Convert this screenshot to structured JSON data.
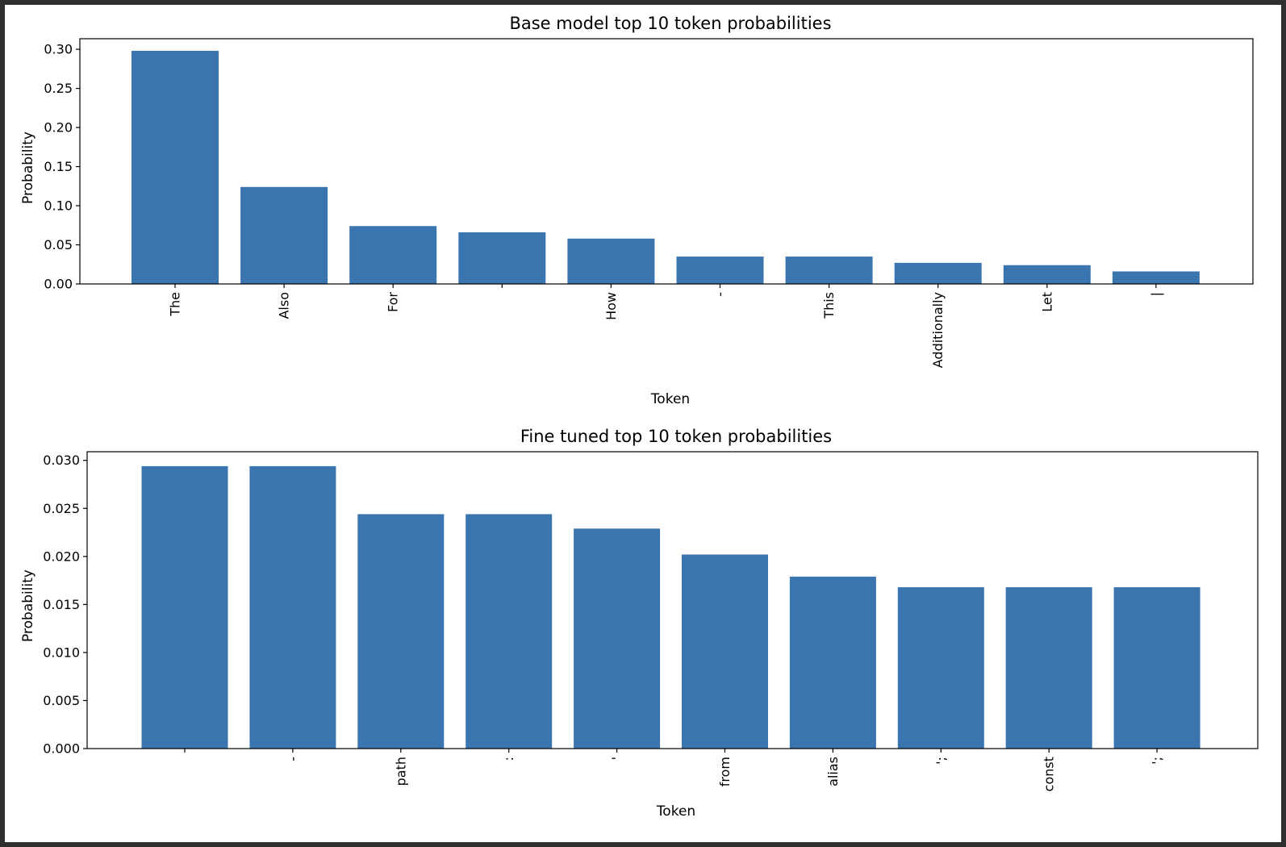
{
  "chart_data": [
    {
      "type": "bar",
      "title": "Base model top 10 token probabilities",
      "xlabel": "Token",
      "ylabel": "Probability",
      "categories": [
        "The",
        "Also",
        "For",
        "",
        "How",
        "-",
        "This",
        "Additionally",
        "Let",
        "|"
      ],
      "values": [
        0.298,
        0.124,
        0.074,
        0.066,
        0.058,
        0.035,
        0.035,
        0.027,
        0.024,
        0.016
      ],
      "ylim": [
        0,
        0.3135
      ],
      "yticks": [
        "0.00",
        "0.05",
        "0.10",
        "0.15",
        "0.20",
        "0.25",
        "0.30"
      ],
      "ytick_values": [
        0,
        0.05,
        0.1,
        0.15,
        0.2,
        0.25,
        0.3
      ],
      "grid": false,
      "bar_color": "#3b75af"
    },
    {
      "type": "bar",
      "title": "Fine tuned top 10 token probabilities",
      "xlabel": "Token",
      "ylabel": "Probability",
      "categories": [
        "",
        "-",
        "path",
        ":",
        "'",
        "from",
        "alias",
        "';",
        "const",
        "';"
      ],
      "values": [
        0.0294,
        0.0294,
        0.0244,
        0.0244,
        0.0229,
        0.0202,
        0.0179,
        0.0168,
        0.0168,
        0.0168
      ],
      "ylim": [
        0,
        0.0309
      ],
      "yticks": [
        "0.000",
        "0.005",
        "0.010",
        "0.015",
        "0.020",
        "0.025",
        "0.030"
      ],
      "ytick_values": [
        0,
        0.005,
        0.01,
        0.015,
        0.02,
        0.025,
        0.03
      ],
      "grid": false,
      "bar_color": "#3b75af"
    }
  ]
}
